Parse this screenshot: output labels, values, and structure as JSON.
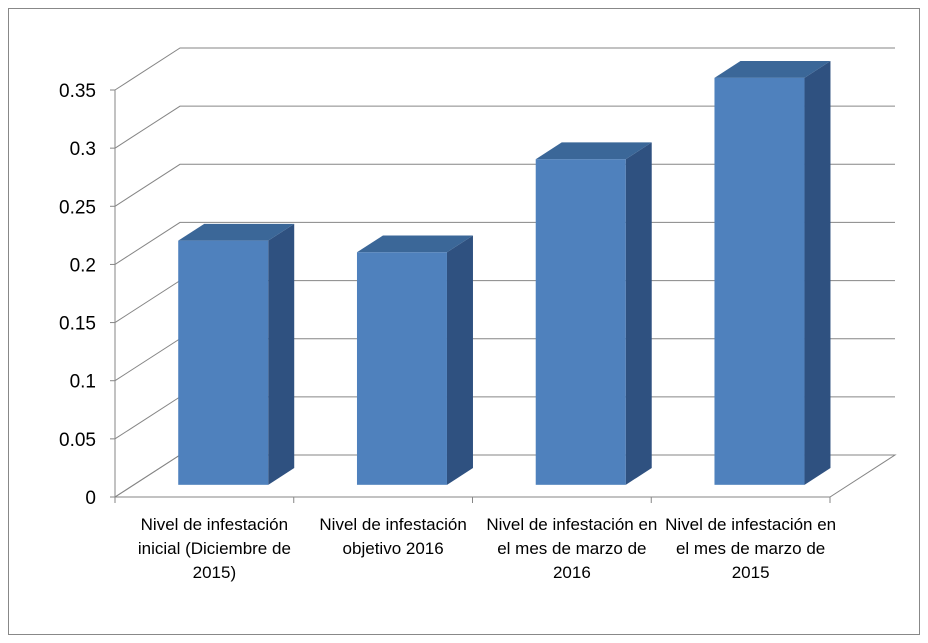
{
  "chart_data": {
    "type": "bar3d",
    "categories": [
      "Nivel de infestación inicial (Diciembre de 2015)",
      "Nivel de infestación objetivo 2016",
      "Nivel de infestación en el mes de marzo de 2016",
      "Nivel de infestación en el mes de marzo de 2015"
    ],
    "values": [
      0.21,
      0.2,
      0.28,
      0.35
    ],
    "color": "#4f81bd",
    "ylim": [
      0,
      0.35
    ],
    "yticks": [
      0,
      0.05,
      0.1,
      0.15,
      0.2,
      0.25,
      0.3,
      0.35
    ],
    "grid": true
  }
}
